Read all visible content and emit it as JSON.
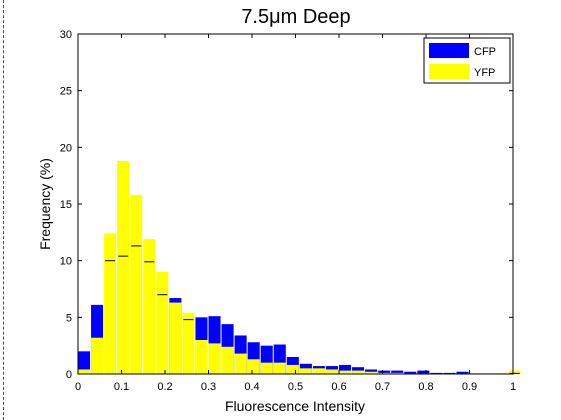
{
  "chart_data": {
    "type": "bar",
    "title": "7.5μm Deep",
    "xlabel": "Fluorescence Intensity",
    "ylabel": "Frequency (%)",
    "xlim": [
      0,
      1
    ],
    "ylim": [
      0,
      30
    ],
    "xticks": [
      0,
      0.1,
      0.2,
      0.3,
      0.4,
      0.5,
      0.6,
      0.7,
      0.8,
      0.9,
      1
    ],
    "xtick_labels": [
      "0",
      "0.1",
      "0.2",
      "0.3",
      "0.4",
      "0.5",
      "0.6",
      "0.7",
      "0.8",
      "0.9",
      "1"
    ],
    "yticks": [
      0,
      5,
      10,
      15,
      20,
      25,
      30
    ],
    "ytick_labels": [
      "0",
      "5",
      "10",
      "15",
      "20",
      "25",
      "30"
    ],
    "grid": false,
    "legend_position": "top-right",
    "bar_width": 0.03,
    "x": [
      0,
      0.03,
      0.06,
      0.09,
      0.12,
      0.15,
      0.18,
      0.21,
      0.24,
      0.27,
      0.3,
      0.33,
      0.36,
      0.39,
      0.42,
      0.45,
      0.48,
      0.51,
      0.54,
      0.57,
      0.6,
      0.63,
      0.66,
      0.69,
      0.72,
      0.75,
      0.78,
      0.81,
      0.84,
      0.87,
      0.9,
      0.93,
      0.96,
      0.99
    ],
    "series": [
      {
        "name": "CFP",
        "color": "#0000ff",
        "values": [
          2.0,
          6.1,
          10.0,
          10.4,
          11.3,
          9.9,
          7.0,
          6.7,
          4.8,
          5.0,
          5.1,
          4.4,
          3.4,
          2.8,
          2.5,
          2.6,
          1.5,
          0.9,
          0.7,
          0.7,
          0.8,
          0.6,
          0.4,
          0.3,
          0.3,
          0.2,
          0.3,
          0.1,
          0.1,
          0.2,
          0.05,
          0.05,
          0.05,
          0.05
        ]
      },
      {
        "name": "YFP",
        "color": "#ffff00",
        "values": [
          0.4,
          3.2,
          12.4,
          18.8,
          15.8,
          11.9,
          9.0,
          6.3,
          5.4,
          3.0,
          2.7,
          2.4,
          1.8,
          1.3,
          1.0,
          1.0,
          0.8,
          0.5,
          0.5,
          0.4,
          0.3,
          0.3,
          0.2,
          0.1,
          0.1,
          0.05,
          0.05,
          0.05,
          0.05,
          0.05,
          0.05,
          0.05,
          0.05,
          0.3
        ]
      }
    ]
  }
}
